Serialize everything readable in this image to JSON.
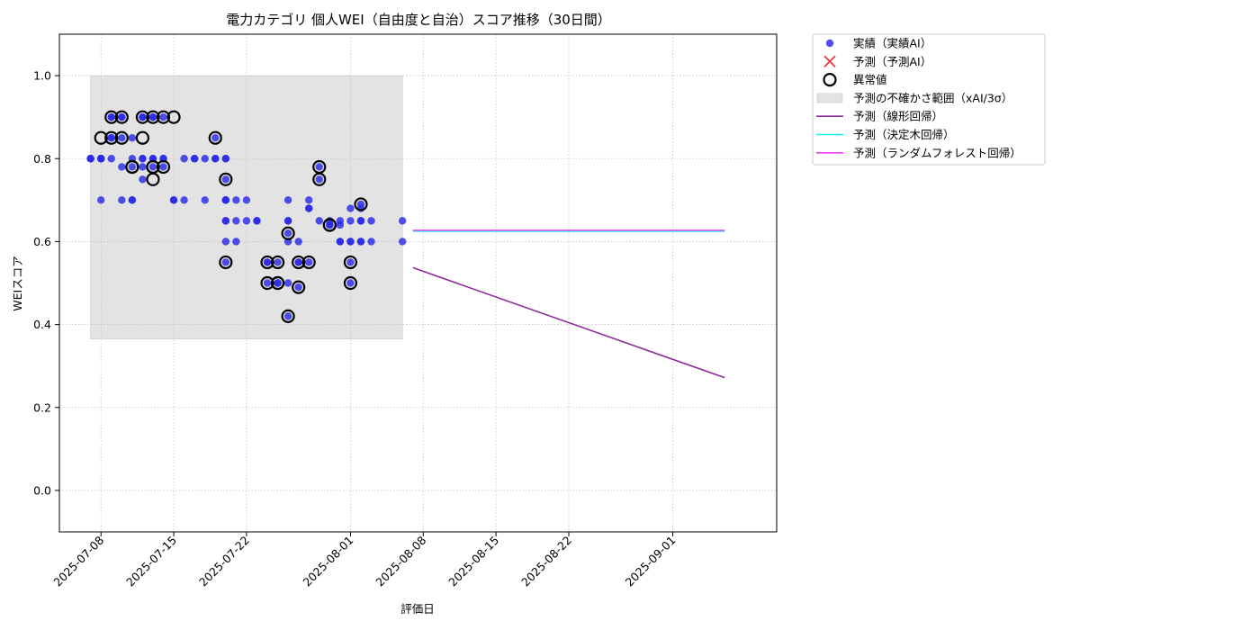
{
  "chart_data": {
    "type": "scatter",
    "title": "電力カテゴリ 個人WEI（自由度と自治）スコア推移（30日間）",
    "xlabel": "評価日",
    "ylabel": "WEIスコア",
    "x_range": [
      "2025-07-04",
      "2025-09-11"
    ],
    "y_range": [
      -0.1,
      1.1
    ],
    "x_ticks": [
      "2025-07-08",
      "2025-07-15",
      "2025-07-22",
      "2025-08-01",
      "2025-08-08",
      "2025-08-15",
      "2025-08-22",
      "2025-09-01"
    ],
    "y_ticks": [
      "0.0",
      "0.2",
      "0.4",
      "0.6",
      "0.8",
      "1.0"
    ],
    "grid": true,
    "legend_position": "outside-right-top",
    "uncertainty_band": {
      "label": "予測の不確かさ範囲（xAI/3σ）",
      "x_start": "2025-07-07",
      "x_end": "2025-08-06",
      "y_low": 0.365,
      "y_high": 1.0,
      "color": "#e3e3e3"
    },
    "series": [
      {
        "name": "実績（実績AI）",
        "kind": "scatter",
        "color": "#2a2ae8",
        "points": [
          [
            "2025-07-07",
            0.8
          ],
          [
            "2025-07-07",
            0.8
          ],
          [
            "2025-07-07",
            0.8
          ],
          [
            "2025-07-08",
            0.8
          ],
          [
            "2025-07-08",
            0.8
          ],
          [
            "2025-07-08",
            0.7
          ],
          [
            "2025-07-08",
            0.8
          ],
          [
            "2025-07-08",
            0.8
          ],
          [
            "2025-07-09",
            0.8
          ],
          [
            "2025-07-09",
            0.9
          ],
          [
            "2025-07-09",
            0.85
          ],
          [
            "2025-07-09",
            0.9
          ],
          [
            "2025-07-09",
            0.85
          ],
          [
            "2025-07-10",
            0.85
          ],
          [
            "2025-07-10",
            0.9
          ],
          [
            "2025-07-10",
            0.9
          ],
          [
            "2025-07-10",
            0.7
          ],
          [
            "2025-07-10",
            0.78
          ],
          [
            "2025-07-11",
            0.8
          ],
          [
            "2025-07-11",
            0.78
          ],
          [
            "2025-07-11",
            0.7
          ],
          [
            "2025-07-11",
            0.7
          ],
          [
            "2025-07-11",
            0.85
          ],
          [
            "2025-07-12",
            0.8
          ],
          [
            "2025-07-12",
            0.9
          ],
          [
            "2025-07-12",
            0.9
          ],
          [
            "2025-07-12",
            0.8
          ],
          [
            "2025-07-12",
            0.75
          ],
          [
            "2025-07-12",
            0.78
          ],
          [
            "2025-07-13",
            0.9
          ],
          [
            "2025-07-13",
            0.78
          ],
          [
            "2025-07-13",
            0.8
          ],
          [
            "2025-07-13",
            0.8
          ],
          [
            "2025-07-13",
            0.9
          ],
          [
            "2025-07-14",
            0.78
          ],
          [
            "2025-07-14",
            0.8
          ],
          [
            "2025-07-14",
            0.9
          ],
          [
            "2025-07-14",
            0.8
          ],
          [
            "2025-07-15",
            0.7
          ],
          [
            "2025-07-15",
            0.7
          ],
          [
            "2025-07-16",
            0.7
          ],
          [
            "2025-07-16",
            0.8
          ],
          [
            "2025-07-17",
            0.8
          ],
          [
            "2025-07-17",
            0.8
          ],
          [
            "2025-07-18",
            0.7
          ],
          [
            "2025-07-18",
            0.8
          ],
          [
            "2025-07-19",
            0.8
          ],
          [
            "2025-07-19",
            0.85
          ],
          [
            "2025-07-19",
            0.8
          ],
          [
            "2025-07-20",
            0.8
          ],
          [
            "2025-07-20",
            0.8
          ],
          [
            "2025-07-20",
            0.7
          ],
          [
            "2025-07-20",
            0.75
          ],
          [
            "2025-07-20",
            0.7
          ],
          [
            "2025-07-20",
            0.65
          ],
          [
            "2025-07-20",
            0.6
          ],
          [
            "2025-07-20",
            0.55
          ],
          [
            "2025-07-20",
            0.65
          ],
          [
            "2025-07-20",
            0.7
          ],
          [
            "2025-07-21",
            0.7
          ],
          [
            "2025-07-21",
            0.65
          ],
          [
            "2025-07-21",
            0.6
          ],
          [
            "2025-07-22",
            0.65
          ],
          [
            "2025-07-22",
            0.7
          ],
          [
            "2025-07-23",
            0.65
          ],
          [
            "2025-07-23",
            0.65
          ],
          [
            "2025-07-24",
            0.55
          ],
          [
            "2025-07-24",
            0.5
          ],
          [
            "2025-07-24",
            0.55
          ],
          [
            "2025-07-25",
            0.5
          ],
          [
            "2025-07-25",
            0.55
          ],
          [
            "2025-07-25",
            0.5
          ],
          [
            "2025-07-26",
            0.65
          ],
          [
            "2025-07-26",
            0.42
          ],
          [
            "2025-07-26",
            0.5
          ],
          [
            "2025-07-26",
            0.65
          ],
          [
            "2025-07-26",
            0.7
          ],
          [
            "2025-07-26",
            0.6
          ],
          [
            "2025-07-26",
            0.62
          ],
          [
            "2025-07-27",
            0.55
          ],
          [
            "2025-07-27",
            0.55
          ],
          [
            "2025-07-27",
            0.49
          ],
          [
            "2025-07-27",
            0.6
          ],
          [
            "2025-07-28",
            0.68
          ],
          [
            "2025-07-28",
            0.68
          ],
          [
            "2025-07-28",
            0.7
          ],
          [
            "2025-07-28",
            0.55
          ],
          [
            "2025-07-29",
            0.65
          ],
          [
            "2025-07-29",
            0.78
          ],
          [
            "2025-07-29",
            0.75
          ],
          [
            "2025-07-30",
            0.64
          ],
          [
            "2025-07-30",
            0.64
          ],
          [
            "2025-07-30",
            0.65
          ],
          [
            "2025-07-31",
            0.64
          ],
          [
            "2025-07-31",
            0.6
          ],
          [
            "2025-07-31",
            0.65
          ],
          [
            "2025-07-31",
            0.6
          ],
          [
            "2025-08-01",
            0.65
          ],
          [
            "2025-08-01",
            0.68
          ],
          [
            "2025-08-01",
            0.6
          ],
          [
            "2025-08-01",
            0.5
          ],
          [
            "2025-08-01",
            0.55
          ],
          [
            "2025-08-01",
            0.6
          ],
          [
            "2025-08-02",
            0.6
          ],
          [
            "2025-08-02",
            0.65
          ],
          [
            "2025-08-02",
            0.68
          ],
          [
            "2025-08-02",
            0.65
          ],
          [
            "2025-08-02",
            0.6
          ],
          [
            "2025-08-02",
            0.69
          ],
          [
            "2025-08-03",
            0.6
          ],
          [
            "2025-08-03",
            0.65
          ],
          [
            "2025-08-06",
            0.65
          ],
          [
            "2025-08-06",
            0.6
          ]
        ]
      },
      {
        "name": "予測（予測AI）",
        "kind": "scatter",
        "marker": "x",
        "color": "#e83a3a",
        "points": []
      },
      {
        "name": "異常値",
        "kind": "ring",
        "color": "#000000",
        "points": [
          [
            "2025-07-08",
            0.85
          ],
          [
            "2025-07-09",
            0.9
          ],
          [
            "2025-07-09",
            0.85
          ],
          [
            "2025-07-10",
            0.85
          ],
          [
            "2025-07-10",
            0.9
          ],
          [
            "2025-07-11",
            0.78
          ],
          [
            "2025-07-11",
            0.78
          ],
          [
            "2025-07-12",
            0.85
          ],
          [
            "2025-07-12",
            0.9
          ],
          [
            "2025-07-13",
            0.75
          ],
          [
            "2025-07-13",
            0.78
          ],
          [
            "2025-07-13",
            0.9
          ],
          [
            "2025-07-13",
            0.78
          ],
          [
            "2025-07-14",
            0.9
          ],
          [
            "2025-07-14",
            0.78
          ],
          [
            "2025-07-15",
            0.9
          ],
          [
            "2025-07-19",
            0.85
          ],
          [
            "2025-07-20",
            0.75
          ],
          [
            "2025-07-20",
            0.55
          ],
          [
            "2025-07-24",
            0.55
          ],
          [
            "2025-07-24",
            0.5
          ],
          [
            "2025-07-25",
            0.55
          ],
          [
            "2025-07-25",
            0.5
          ],
          [
            "2025-07-25",
            0.5
          ],
          [
            "2025-07-26",
            0.42
          ],
          [
            "2025-07-26",
            0.62
          ],
          [
            "2025-07-27",
            0.55
          ],
          [
            "2025-07-27",
            0.49
          ],
          [
            "2025-07-28",
            0.55
          ],
          [
            "2025-07-29",
            0.78
          ],
          [
            "2025-07-29",
            0.75
          ],
          [
            "2025-07-30",
            0.64
          ],
          [
            "2025-07-30",
            0.64
          ],
          [
            "2025-08-01",
            0.55
          ],
          [
            "2025-08-01",
            0.5
          ],
          [
            "2025-08-02",
            0.69
          ]
        ]
      },
      {
        "name": "予測（線形回帰）",
        "kind": "line",
        "color": "#8e2a9c",
        "points": [
          [
            "2025-08-07",
            0.537
          ],
          [
            "2025-09-06",
            0.272
          ]
        ]
      },
      {
        "name": "予測（決定木回帰）",
        "kind": "line",
        "color": "#19f2f2",
        "points": [
          [
            "2025-08-07",
            0.625
          ],
          [
            "2025-09-06",
            0.625
          ]
        ]
      },
      {
        "name": "予測（ランダムフォレスト回帰）",
        "kind": "line",
        "color": "#f23ff2",
        "points": [
          [
            "2025-08-07",
            0.627
          ],
          [
            "2025-09-06",
            0.627
          ]
        ]
      }
    ]
  }
}
